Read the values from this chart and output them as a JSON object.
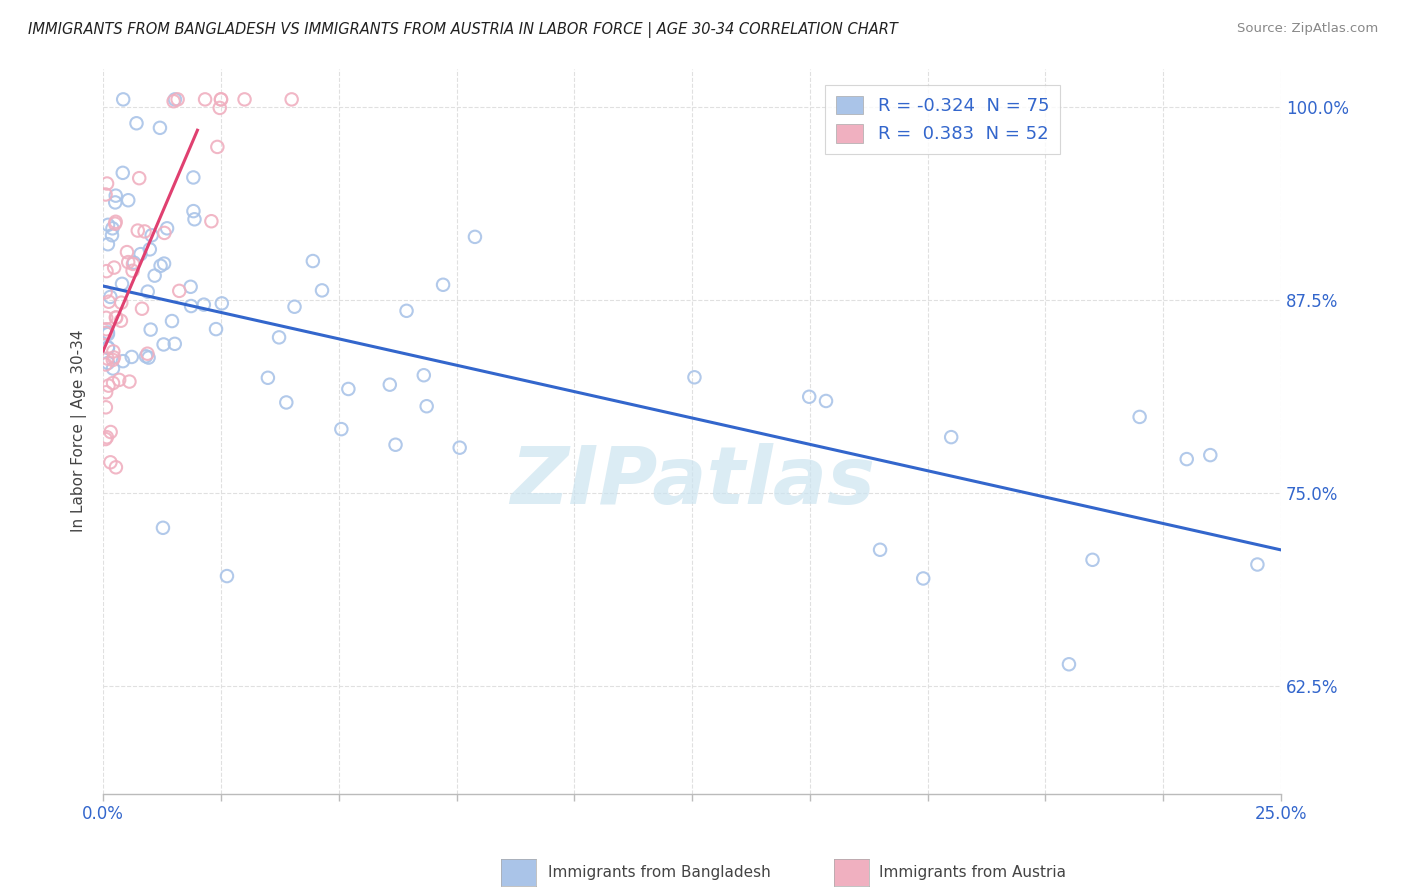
{
  "title": "IMMIGRANTS FROM BANGLADESH VS IMMIGRANTS FROM AUSTRIA IN LABOR FORCE | AGE 30-34 CORRELATION CHART",
  "source": "Source: ZipAtlas.com",
  "ylabel_label": "In Labor Force | Age 30-34",
  "xmin": 0.0,
  "xmax": 0.25,
  "ymin": 0.555,
  "ymax": 1.025,
  "y_ticks": [
    0.625,
    0.75,
    0.875,
    1.0
  ],
  "y_tick_labels": [
    "62.5%",
    "75.0%",
    "87.5%",
    "100.0%"
  ],
  "x_ticks": [
    0.0,
    0.025,
    0.05,
    0.075,
    0.1,
    0.125,
    0.15,
    0.175,
    0.2,
    0.225,
    0.25
  ],
  "bangladesh_color": "#aac4e8",
  "austria_color": "#f0b0c0",
  "bangladesh_line_color": "#3366cc",
  "austria_line_color": "#e04070",
  "watermark_color": "#cce4f0",
  "background_color": "#ffffff",
  "grid_color": "#e0e0e0",
  "legend_r1": "R = -0.324",
  "legend_n1": "N = 75",
  "legend_r2": "R =  0.383",
  "legend_n2": "N = 52",
  "bang_line_x0": 0.0,
  "bang_line_x1": 0.25,
  "bang_line_y0": 0.884,
  "bang_line_y1": 0.713,
  "aust_line_x0": 0.0,
  "aust_line_x1": 0.02,
  "aust_line_y0": 0.842,
  "aust_line_y1": 0.985
}
